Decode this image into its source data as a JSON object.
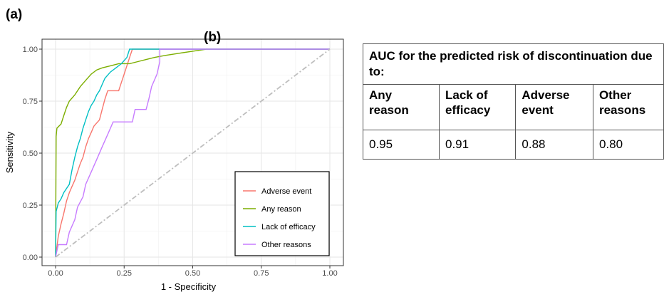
{
  "panel_a_label": "(a)",
  "panel_b_label": "(b)",
  "chart_data": {
    "type": "line",
    "title": "",
    "xlabel": "1 - Specificity",
    "ylabel": "Sensitivity",
    "xlim": [
      0,
      1
    ],
    "ylim": [
      0,
      1
    ],
    "x_ticks": [
      "0.00",
      "0.25",
      "0.50",
      "0.75",
      "1.00"
    ],
    "y_ticks": [
      "0.00",
      "0.25",
      "0.50",
      "0.75",
      "1.00"
    ],
    "grid": true,
    "legend_position": "bottom-right",
    "series": [
      {
        "name": "Adverse event",
        "color": "#f8766d",
        "points": [
          [
            0,
            0
          ],
          [
            0.01,
            0.1
          ],
          [
            0.02,
            0.16
          ],
          [
            0.03,
            0.21
          ],
          [
            0.04,
            0.27
          ],
          [
            0.05,
            0.31
          ],
          [
            0.06,
            0.34
          ],
          [
            0.07,
            0.37
          ],
          [
            0.08,
            0.41
          ],
          [
            0.09,
            0.45
          ],
          [
            0.1,
            0.48
          ],
          [
            0.11,
            0.53
          ],
          [
            0.12,
            0.57
          ],
          [
            0.13,
            0.6
          ],
          [
            0.14,
            0.63
          ],
          [
            0.16,
            0.66
          ],
          [
            0.17,
            0.71
          ],
          [
            0.18,
            0.76
          ],
          [
            0.19,
            0.8
          ],
          [
            0.23,
            0.8
          ],
          [
            0.24,
            0.84
          ],
          [
            0.25,
            0.88
          ],
          [
            0.26,
            0.92
          ],
          [
            0.27,
            0.96
          ],
          [
            0.28,
            1.0
          ],
          [
            1.0,
            1.0
          ]
        ]
      },
      {
        "name": "Any reason",
        "color": "#7cae00",
        "points": [
          [
            0,
            0
          ],
          [
            0.002,
            0.58
          ],
          [
            0.005,
            0.62
          ],
          [
            0.02,
            0.64
          ],
          [
            0.03,
            0.68
          ],
          [
            0.04,
            0.72
          ],
          [
            0.05,
            0.75
          ],
          [
            0.07,
            0.78
          ],
          [
            0.09,
            0.82
          ],
          [
            0.11,
            0.85
          ],
          [
            0.13,
            0.88
          ],
          [
            0.15,
            0.9
          ],
          [
            0.17,
            0.91
          ],
          [
            0.2,
            0.92
          ],
          [
            0.23,
            0.93
          ],
          [
            0.27,
            0.93
          ],
          [
            0.3,
            0.94
          ],
          [
            0.33,
            0.95
          ],
          [
            0.36,
            0.96
          ],
          [
            0.4,
            0.97
          ],
          [
            0.45,
            0.98
          ],
          [
            0.5,
            0.99
          ],
          [
            0.55,
            1.0
          ],
          [
            1.0,
            1.0
          ]
        ]
      },
      {
        "name": "Lack of efficacy",
        "color": "#00bfc4",
        "points": [
          [
            0,
            0
          ],
          [
            0.002,
            0.22
          ],
          [
            0.01,
            0.26
          ],
          [
            0.02,
            0.28
          ],
          [
            0.03,
            0.31
          ],
          [
            0.04,
            0.33
          ],
          [
            0.05,
            0.35
          ],
          [
            0.06,
            0.42
          ],
          [
            0.07,
            0.48
          ],
          [
            0.08,
            0.53
          ],
          [
            0.09,
            0.57
          ],
          [
            0.1,
            0.62
          ],
          [
            0.11,
            0.66
          ],
          [
            0.12,
            0.7
          ],
          [
            0.13,
            0.73
          ],
          [
            0.14,
            0.75
          ],
          [
            0.15,
            0.78
          ],
          [
            0.16,
            0.8
          ],
          [
            0.17,
            0.83
          ],
          [
            0.18,
            0.86
          ],
          [
            0.2,
            0.89
          ],
          [
            0.22,
            0.91
          ],
          [
            0.24,
            0.93
          ],
          [
            0.26,
            0.96
          ],
          [
            0.27,
            1.0
          ],
          [
            1.0,
            1.0
          ]
        ]
      },
      {
        "name": "Other reasons",
        "color": "#c77cff",
        "points": [
          [
            0,
            0
          ],
          [
            0.01,
            0.06
          ],
          [
            0.04,
            0.06
          ],
          [
            0.05,
            0.12
          ],
          [
            0.07,
            0.18
          ],
          [
            0.08,
            0.24
          ],
          [
            0.1,
            0.29
          ],
          [
            0.11,
            0.35
          ],
          [
            0.13,
            0.41
          ],
          [
            0.15,
            0.47
          ],
          [
            0.17,
            0.53
          ],
          [
            0.19,
            0.59
          ],
          [
            0.21,
            0.65
          ],
          [
            0.28,
            0.65
          ],
          [
            0.29,
            0.71
          ],
          [
            0.33,
            0.71
          ],
          [
            0.34,
            0.76
          ],
          [
            0.35,
            0.82
          ],
          [
            0.37,
            0.88
          ],
          [
            0.38,
            0.94
          ],
          [
            0.38,
            1.0
          ],
          [
            1.0,
            1.0
          ]
        ]
      },
      {
        "name": "",
        "color": "#bebebe",
        "style": "dash-dot",
        "points": [
          [
            0,
            0
          ],
          [
            1,
            1
          ]
        ]
      }
    ]
  },
  "table": {
    "title": "AUC for the predicted risk of discontinuation due to:",
    "headers": [
      "Any reason",
      "Lack of efficacy",
      "Adverse event",
      "Other reasons"
    ],
    "values": [
      "0.95",
      "0.91",
      "0.88",
      "0.80"
    ]
  }
}
